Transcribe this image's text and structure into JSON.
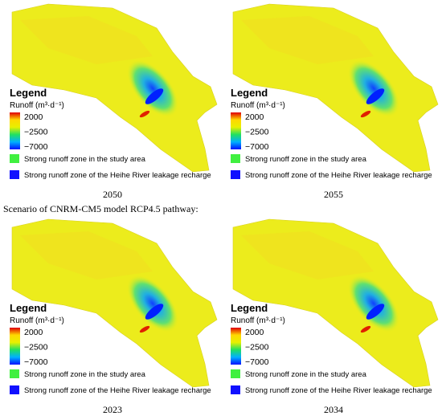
{
  "legend": {
    "title": "Legend",
    "quantity": "Runoff (m³·d⁻¹)",
    "ticks": [
      "2000",
      "−2500",
      "−7000"
    ],
    "items": [
      "Strong runoff zone in the study area",
      "Strong runoff zone of the Heihe River leakage recharge"
    ]
  },
  "scenario_heading": "Scenario of CNRM-CM5 model RCP4.5 pathway:",
  "panels": [
    {
      "caption": "2050"
    },
    {
      "caption": "2055"
    },
    {
      "caption": "2023"
    },
    {
      "caption": "2034"
    }
  ]
}
